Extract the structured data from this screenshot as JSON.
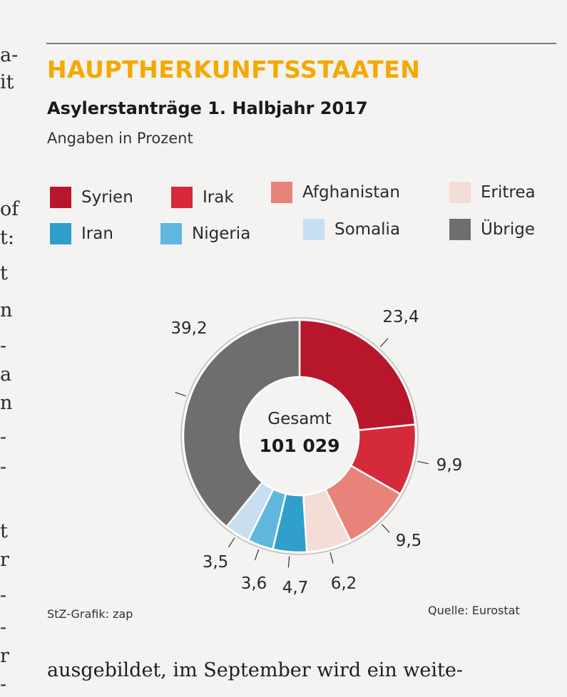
{
  "article": {
    "margin_fragments": [
      "a-",
      "it",
      "of",
      "t:",
      "t",
      "n",
      "-",
      "a",
      "n",
      "-",
      "-",
      "t",
      "r",
      "-",
      "-",
      "r",
      "-"
    ],
    "continuation_text": "ausgebildet, im September wird ein weite-"
  },
  "chart_data": {
    "type": "donut",
    "title": "HAUPTHERKUNFTSSTAATEN",
    "subtitle": "Asylerstanträge 1. Halbjahr 2017",
    "unit_note": "Angaben in Prozent",
    "center_label": "Gesamt",
    "center_value": "101 029",
    "categories": [
      "Syrien",
      "Irak",
      "Afghanistan",
      "Eritrea",
      "Iran",
      "Nigeria",
      "Somalia",
      "Übrige"
    ],
    "values": [
      23.4,
      9.9,
      9.5,
      6.2,
      4.7,
      3.6,
      3.5,
      39.2
    ],
    "value_labels": [
      "23,4",
      "9,9",
      "9,5",
      "6,2",
      "4,7",
      "3,6",
      "3,5",
      "39,2"
    ],
    "colors": [
      "#b8162b",
      "#d42a3a",
      "#e8837a",
      "#f3ddd6",
      "#2f9fcb",
      "#5fb7dd",
      "#c7dff1",
      "#6e6e6e"
    ],
    "credit": "StZ-Grafik: zap",
    "source": "Quelle: Eurostat"
  }
}
